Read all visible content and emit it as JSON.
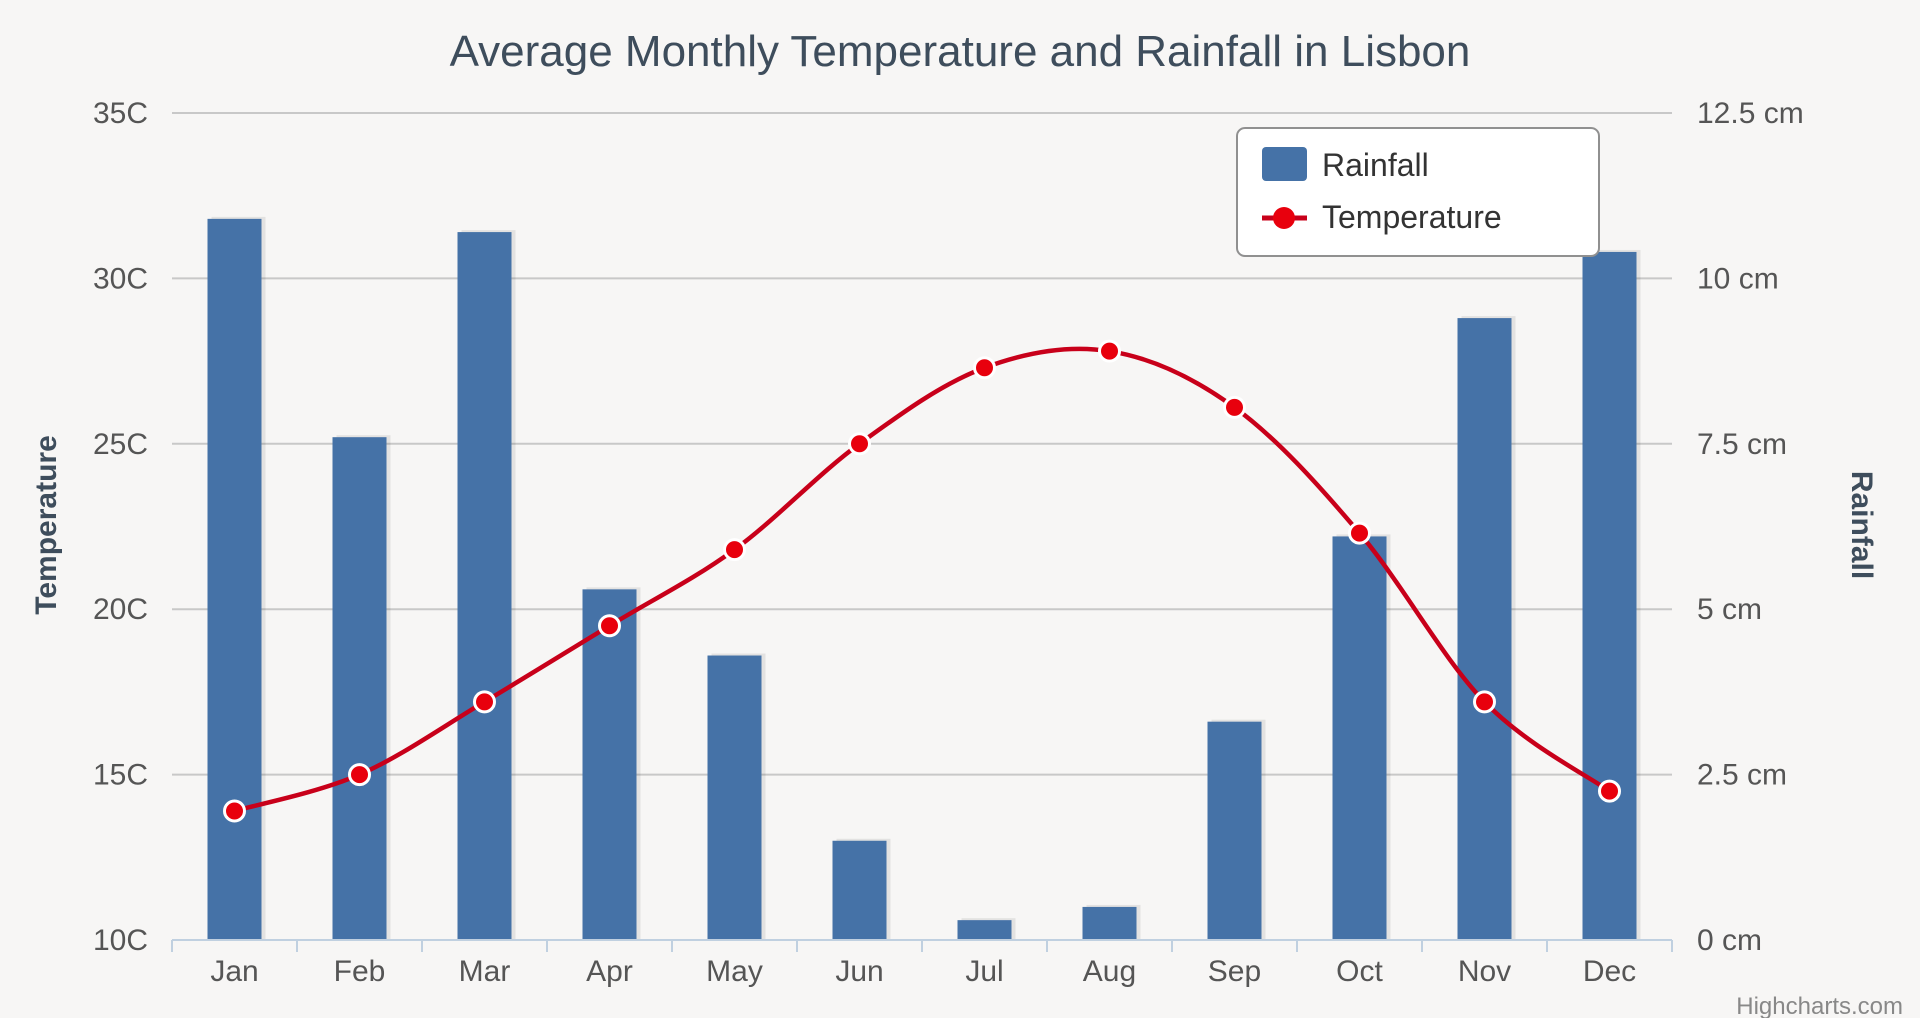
{
  "chart_data": {
    "type": "bar+line",
    "title": "Average Monthly Temperature and Rainfall in Lisbon",
    "categories": [
      "Jan",
      "Feb",
      "Mar",
      "Apr",
      "May",
      "Jun",
      "Jul",
      "Aug",
      "Sep",
      "Oct",
      "Nov",
      "Dec"
    ],
    "series": [
      {
        "name": "Rainfall",
        "type": "bar",
        "axis": "right",
        "unit": "cm",
        "color": "#4572a7",
        "values": [
          10.9,
          7.6,
          10.7,
          5.3,
          4.3,
          1.5,
          0.3,
          0.5,
          3.3,
          6.1,
          9.4,
          10.4
        ]
      },
      {
        "name": "Temperature",
        "type": "line",
        "axis": "left",
        "unit": "C",
        "color": "#e8000d",
        "values": [
          13.9,
          15.0,
          17.2,
          19.5,
          21.8,
          25.0,
          27.3,
          27.8,
          26.1,
          22.3,
          17.2,
          14.5
        ]
      }
    ],
    "left_axis": {
      "title": "Temperature",
      "ylim": [
        10,
        35
      ],
      "tick_values": [
        10,
        15,
        20,
        25,
        30,
        35
      ],
      "tick_labels": [
        "10C",
        "15C",
        "20C",
        "25C",
        "30C",
        "35C"
      ]
    },
    "right_axis": {
      "title": "Rainfall",
      "ylim": [
        0,
        12.5
      ],
      "tick_values": [
        0,
        2.5,
        5,
        7.5,
        10,
        12.5
      ],
      "tick_labels": [
        "0 cm",
        "2.5 cm",
        "5 cm",
        "7.5 cm",
        "10 cm",
        "12.5 cm"
      ]
    },
    "legend": {
      "position": "top-right",
      "items": [
        "Rainfall",
        "Temperature"
      ]
    },
    "credits": "Highcharts.com",
    "grid": true
  }
}
